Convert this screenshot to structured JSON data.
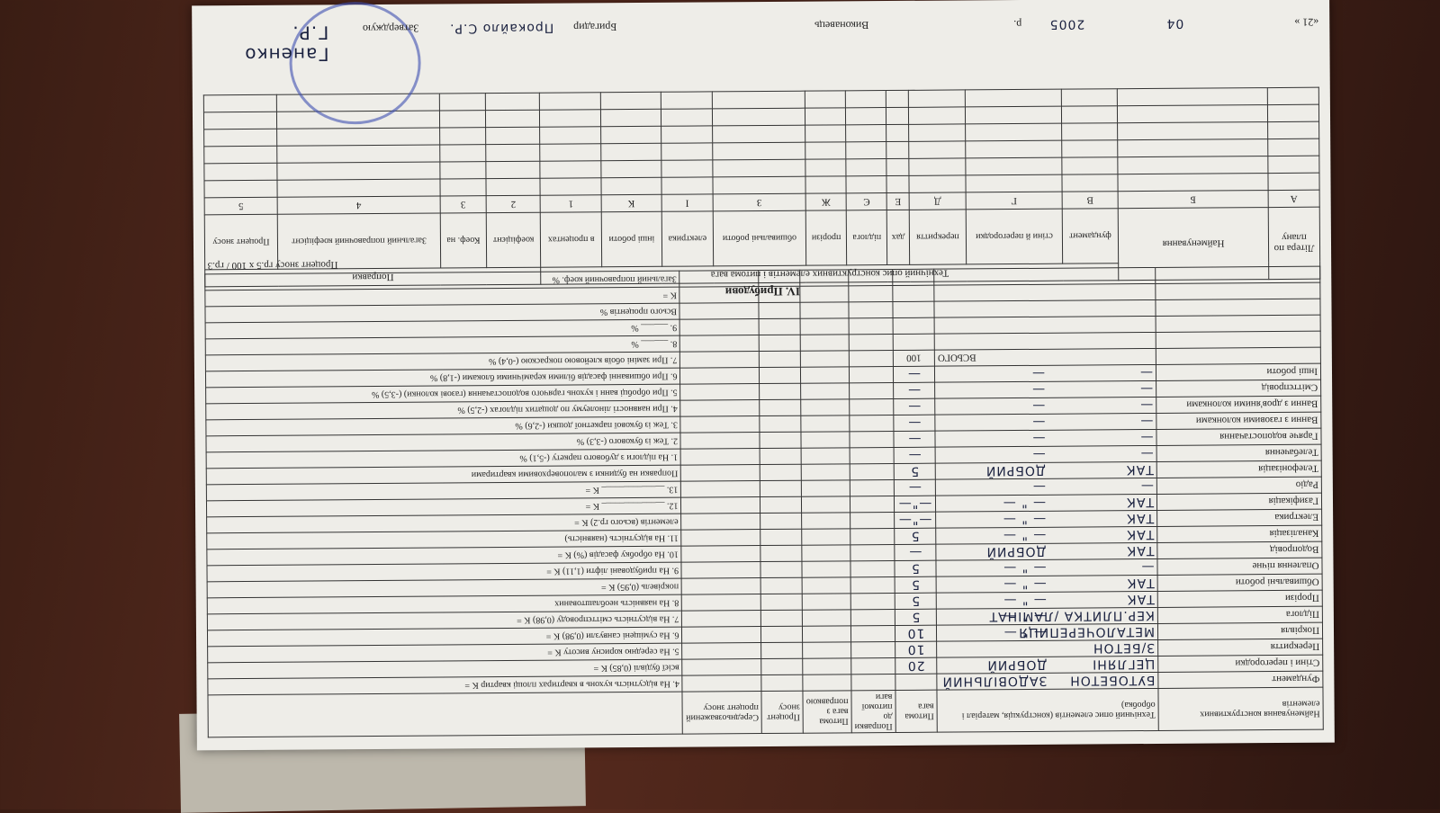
{
  "main_table": {
    "columns": [
      "Найменування конструктивних елементів",
      "Технічний опис елементів (конструкція, матеріал і обробка)",
      "Питома вага",
      "Поправки до питомої ваги",
      "Питома вага з поправкою",
      "Процент зносу",
      "Середньозважений процент зносу"
    ],
    "rows": [
      {
        "name": "Фундамент",
        "description": "БУТОБЕТОН",
        "condition": "ЗАДОВІЛЬНИЙ"
      },
      {
        "name": "Стіни і перегородки",
        "description": "ЦЕГЛЯНІ",
        "condition": "ДОБРИЙ",
        "weight": "20"
      },
      {
        "name": "Перекриття",
        "description": "З/БЕТОН",
        "weight": "10"
      },
      {
        "name": "Покрівля",
        "description": "МЕТАЛОЧЕРЕПИЦЯ",
        "condition": "— \" —",
        "weight": "10"
      },
      {
        "name": "Підлога",
        "description": "КЕР.ПЛИТКА /ЛАМІНАТ",
        "condition": "— \" —",
        "weight": "5"
      },
      {
        "name": "Прорізи",
        "description": "ТАК",
        "condition": "— \" —",
        "weight": "5"
      },
      {
        "name": "Обшивальні роботи",
        "description": "ТАК",
        "condition": "— \" —",
        "weight": "5"
      },
      {
        "name": "Опалення пічне",
        "description": "—",
        "condition": "— \" —",
        "weight": "5"
      },
      {
        "name": "Водопровід",
        "description": "ТАК",
        "condition": "ДОБРИЙ",
        "weight": "—"
      },
      {
        "name": "Каналізація",
        "description": "ТАК",
        "condition": "— \" —",
        "weight": "5"
      },
      {
        "name": "Електрика",
        "description": "ТАК",
        "condition": "— \" —",
        "weight": "—\"—"
      },
      {
        "name": "Газифікація",
        "description": "ТАК",
        "condition": "— \" —",
        "weight": "—\"—"
      },
      {
        "name": "Радіо",
        "description": "—",
        "condition": "—",
        "weight": "—"
      },
      {
        "name": "Телефонізація",
        "description": "ТАК",
        "condition": "ДОБРИЙ",
        "weight": "5"
      },
      {
        "name": "Телебачення",
        "description": "—",
        "condition": "—",
        "weight": "—"
      },
      {
        "name": "Гаряче водопостачання",
        "description": "—",
        "condition": "—",
        "weight": "—"
      },
      {
        "name": "Ванни з газовими колонками",
        "description": "—",
        "condition": "—",
        "weight": "—"
      },
      {
        "name": "Ванни з дров'яними колонками",
        "description": "—",
        "condition": "—",
        "weight": "—"
      },
      {
        "name": "Сміттєпровід",
        "description": "—",
        "condition": "—",
        "weight": "—"
      },
      {
        "name": "Інші роботи",
        "description": "—",
        "condition": "—",
        "weight": "—"
      }
    ],
    "total_label": "ВСЬОГО",
    "total_weight": "100",
    "corrections": [
      "4. На відсутність кухонь в квартирах площі квартир        K =",
      "всієї будівлі (0,85)        K =",
      "5. На середню корисну висоту        K =",
      "6. На суміщені санвузли (0,98)        K =",
      "7. На відсутність сміттєпроводу (0,98)  K =",
      "8. На наявність необлаштованих",
      "покрівель (0,95)        K =",
      "9. На прибудовані ліфти (1,11)        K =",
      "10. На обробку фасадів (%)        K =",
      "11. На відсутність (наявність)",
      "елементів (всього гр.2)        K =",
      "12. ______________        K =",
      "13. ______________        K =",
      "Поправки на будинки з малоповерховими квартирами",
      "1. На підлоги з дубового паркету (-5,1)     %",
      "2. Теж із букового (-3,3)     %",
      "3. Теж із букової паркетної дошки (-2,6)     %",
      "4. При наявності лінолеуму по дощатих підлогах (-2,5)     %",
      "5. При обробці ванн і кухонь гарячого водопостачання (газові колонки) (-3,5)     %",
      "6. При обшиванні фасадів білими керамічними блоками (-1,8)     %",
      "7. При заміні обоїв клейовою покраскою (-0,4)     %",
      "8. ______     %",
      "9. ______     %",
      "Всього процентів     %",
      "K =",
      "Загальний поправочний коеф.     %"
    ],
    "wear_formula": "Процент зносу  гр.5 x 100 / гр.3"
  },
  "section_iv": {
    "title": "IV. Прибудови",
    "col_letter": "Літера по плану",
    "col_name": "Найменування",
    "group_description": "Технічний опис конструктивних елементів і питома вага",
    "group_corrections": "Поправки",
    "elements": [
      "фундамент",
      "стіни й перегородки",
      "перекриття",
      "дах",
      "підлога",
      "прорізи",
      "обшивальні роботи",
      "електрика",
      "інші роботи",
      "в процентах"
    ],
    "corrections": [
      "коефіцієнт",
      "Коеф. на",
      "Загальний поправочний коефіцієнт",
      "Процент зносу"
    ],
    "letters": [
      "А",
      "Б",
      "В",
      "Г",
      "Д",
      "Е",
      "Є",
      "Ж",
      "З",
      "І",
      "К",
      "1",
      "2",
      "3",
      "4",
      "5"
    ]
  },
  "signatures": {
    "date_day": "«21 »",
    "date_month": "04",
    "date_year": "2005",
    "date_suffix": "р.",
    "executor": "Виконавець",
    "brigadier": "Бригадир",
    "brigadier_name": "Прокайло С.Р.",
    "approve": "Затверджую",
    "approver_name": "Ганенко Г.Р."
  }
}
